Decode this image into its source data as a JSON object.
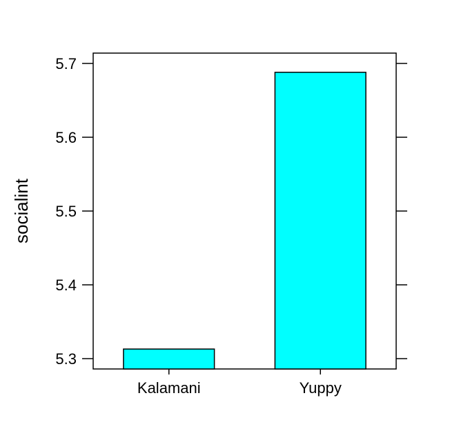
{
  "chart_data": {
    "type": "bar",
    "categories": [
      "Kalamani",
      "Yuppy"
    ],
    "values": [
      5.313,
      5.688
    ],
    "ylabel": "socialint",
    "xlabel": "",
    "ylim": [
      5.286,
      5.714
    ],
    "yticks": [
      5.3,
      5.4,
      5.5,
      5.6,
      5.7
    ],
    "ytick_labels": [
      "5.3",
      "5.4",
      "5.5",
      "5.6",
      "5.7"
    ],
    "grid": false,
    "bar_color": "#00FFFF",
    "bar_edge_color": "#000000"
  }
}
